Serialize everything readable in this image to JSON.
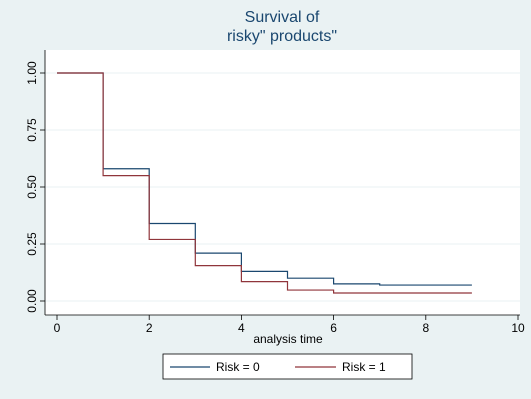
{
  "chart_data": {
    "type": "line",
    "title": "Survival of",
    "subtitle": "risky\" products\"",
    "xlabel": "analysis time",
    "ylabel": "",
    "xlim": [
      0,
      10
    ],
    "ylim": [
      0,
      1
    ],
    "x_ticks": [
      0,
      2,
      4,
      6,
      8,
      10
    ],
    "y_ticks": [
      0.0,
      0.25,
      0.5,
      0.75,
      1.0
    ],
    "x_tick_labels": [
      "0",
      "2",
      "4",
      "6",
      "8",
      "10"
    ],
    "y_tick_labels": [
      "0.00",
      "0.25",
      "0.50",
      "0.75",
      "1.00"
    ],
    "grid": true,
    "legend_position": "bottom",
    "step": true,
    "series": [
      {
        "name": "Risk = 0",
        "color": "#1a476f",
        "x": [
          0,
          1,
          2,
          3,
          4,
          5,
          6,
          7,
          9
        ],
        "y": [
          1.0,
          0.58,
          0.34,
          0.21,
          0.13,
          0.1,
          0.075,
          0.07,
          0.07
        ]
      },
      {
        "name": "Risk = 1",
        "color": "#90353b",
        "x": [
          0,
          1,
          2,
          3,
          4,
          5,
          6,
          9
        ],
        "y": [
          1.0,
          0.55,
          0.27,
          0.155,
          0.085,
          0.048,
          0.035,
          0.035
        ]
      }
    ]
  }
}
